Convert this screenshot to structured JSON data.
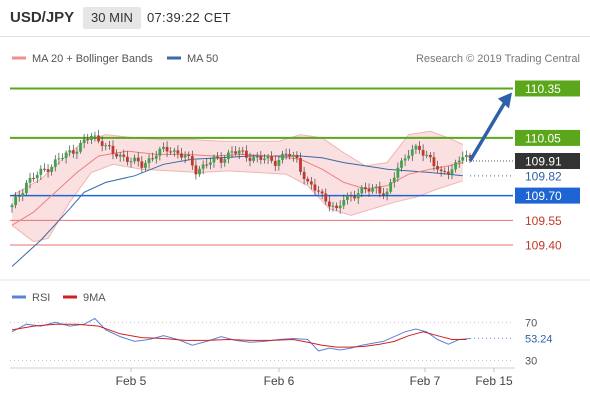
{
  "header": {
    "symbol": "USD/JPY",
    "timeframe": "30 MIN",
    "time": "07:39:22 CET"
  },
  "legend": {
    "ma20": "MA 20 + Bollinger Bands",
    "ma50": "MA 50",
    "credit": "Research © 2019 Trading Central"
  },
  "rsi_legend": {
    "rsi": "RSI",
    "ma9": "9MA"
  },
  "colors": {
    "resistance": "#5ba61b",
    "current": "#333333",
    "support": "#1e64d2",
    "weak": "#e57373",
    "ma20": "#ef7f7f",
    "ma50": "#3a6aa8",
    "bull": "#3fa34d",
    "bear": "#c0392b",
    "bands": "#f8d6d6",
    "arrow": "#2d62a8",
    "rsi": "#5a82d6",
    "rsi_ma": "#d22020"
  },
  "chart_data": [
    {
      "type": "candlestick",
      "title": "USD/JPY",
      "timeframe": "30 MIN",
      "x_labels": [
        "Feb 5",
        "Feb 6",
        "Feb 7",
        "Feb 15"
      ],
      "ylim": [
        109.2,
        110.45
      ],
      "current_price": 109.91,
      "ma50_value": 109.82,
      "levels": [
        {
          "label": "110.35",
          "value": 110.35,
          "kind": "resistance"
        },
        {
          "label": "110.05",
          "value": 110.05,
          "kind": "resistance"
        },
        {
          "label": "109.91",
          "value": 109.91,
          "kind": "current"
        },
        {
          "label": "109.82",
          "value": 109.82,
          "kind": "ma50"
        },
        {
          "label": "109.70",
          "value": 109.7,
          "kind": "support"
        },
        {
          "label": "109.55",
          "value": 109.55,
          "kind": "weak"
        },
        {
          "label": "109.40",
          "value": 109.4,
          "kind": "weak"
        }
      ],
      "target": 110.35,
      "close_path": [
        [
          0,
          109.63
        ],
        [
          4,
          109.78
        ],
        [
          8,
          109.84
        ],
        [
          13,
          109.92
        ],
        [
          18,
          109.99
        ],
        [
          22,
          110.06
        ],
        [
          25,
          110.03
        ],
        [
          28,
          109.95
        ],
        [
          32,
          109.93
        ],
        [
          36,
          109.88
        ],
        [
          40,
          109.96
        ],
        [
          44,
          109.98
        ],
        [
          48,
          109.94
        ],
        [
          51,
          109.85
        ],
        [
          54,
          109.9
        ],
        [
          58,
          109.92
        ],
        [
          61,
          109.97
        ],
        [
          64,
          109.95
        ],
        [
          67,
          109.93
        ],
        [
          70,
          109.92
        ],
        [
          73,
          109.91
        ],
        [
          76,
          109.95
        ],
        [
          79,
          109.92
        ],
        [
          82,
          109.77
        ],
        [
          85,
          109.72
        ],
        [
          88,
          109.66
        ],
        [
          90,
          109.6
        ],
        [
          92,
          109.68
        ],
        [
          95,
          109.71
        ],
        [
          98,
          109.73
        ],
        [
          101,
          109.75
        ],
        [
          104,
          109.7
        ],
        [
          107,
          109.88
        ],
        [
          110,
          109.96
        ],
        [
          113,
          109.98
        ],
        [
          116,
          109.93
        ],
        [
          119,
          109.82
        ],
        [
          122,
          109.87
        ],
        [
          125,
          109.94
        ],
        [
          127,
          109.91
        ]
      ],
      "ma50": [
        [
          0,
          109.27
        ],
        [
          8,
          109.43
        ],
        [
          16,
          109.62
        ],
        [
          20,
          109.72
        ],
        [
          26,
          109.78
        ],
        [
          34,
          109.82
        ],
        [
          42,
          109.89
        ],
        [
          50,
          109.92
        ],
        [
          58,
          109.93
        ],
        [
          66,
          109.94
        ],
        [
          74,
          109.94
        ],
        [
          80,
          109.94
        ],
        [
          86,
          109.93
        ],
        [
          92,
          109.9
        ],
        [
          98,
          109.88
        ],
        [
          104,
          109.86
        ],
        [
          110,
          109.85
        ],
        [
          116,
          109.84
        ],
        [
          121,
          109.83
        ],
        [
          125,
          109.82
        ]
      ],
      "ma20": [
        [
          0,
          109.52
        ],
        [
          6,
          109.6
        ],
        [
          12,
          109.72
        ],
        [
          18,
          109.84
        ],
        [
          24,
          109.94
        ],
        [
          32,
          109.97
        ],
        [
          40,
          109.95
        ],
        [
          48,
          109.95
        ],
        [
          56,
          109.94
        ],
        [
          64,
          109.95
        ],
        [
          72,
          109.94
        ],
        [
          80,
          109.92
        ],
        [
          86,
          109.86
        ],
        [
          92,
          109.78
        ],
        [
          98,
          109.74
        ],
        [
          104,
          109.76
        ],
        [
          110,
          109.83
        ],
        [
          116,
          109.86
        ],
        [
          121,
          109.88
        ],
        [
          125,
          109.9
        ]
      ],
      "bb_upper": [
        [
          0,
          109.7
        ],
        [
          8,
          109.8
        ],
        [
          14,
          109.92
        ],
        [
          20,
          110.03
        ],
        [
          26,
          110.07
        ],
        [
          34,
          110.05
        ],
        [
          42,
          110.04
        ],
        [
          50,
          110.04
        ],
        [
          58,
          110.03
        ],
        [
          66,
          110.03
        ],
        [
          74,
          110.03
        ],
        [
          80,
          110.07
        ],
        [
          86,
          110.05
        ],
        [
          92,
          109.96
        ],
        [
          98,
          109.88
        ],
        [
          104,
          109.9
        ],
        [
          110,
          110.07
        ],
        [
          116,
          110.09
        ],
        [
          121,
          110.05
        ],
        [
          125,
          110.01
        ]
      ],
      "bb_lower": [
        [
          0,
          109.52
        ],
        [
          6,
          109.42
        ],
        [
          10,
          109.44
        ],
        [
          16,
          109.66
        ],
        [
          22,
          109.84
        ],
        [
          28,
          109.89
        ],
        [
          36,
          109.86
        ],
        [
          44,
          109.85
        ],
        [
          52,
          109.84
        ],
        [
          60,
          109.85
        ],
        [
          68,
          109.84
        ],
        [
          76,
          109.83
        ],
        [
          82,
          109.76
        ],
        [
          88,
          109.62
        ],
        [
          94,
          109.58
        ],
        [
          100,
          109.62
        ],
        [
          106,
          109.66
        ],
        [
          112,
          109.69
        ],
        [
          118,
          109.74
        ],
        [
          125,
          109.79
        ]
      ]
    },
    {
      "type": "line",
      "title": "RSI",
      "ylim": [
        20,
        85
      ],
      "yticks": [
        30,
        70
      ],
      "current_value": 53.24,
      "rsi": [
        [
          0,
          60
        ],
        [
          4,
          68
        ],
        [
          8,
          66
        ],
        [
          12,
          70
        ],
        [
          16,
          66
        ],
        [
          20,
          68
        ],
        [
          23,
          74
        ],
        [
          26,
          62
        ],
        [
          30,
          55
        ],
        [
          34,
          50
        ],
        [
          38,
          52
        ],
        [
          42,
          56
        ],
        [
          46,
          52
        ],
        [
          50,
          46
        ],
        [
          54,
          50
        ],
        [
          58,
          55
        ],
        [
          62,
          51
        ],
        [
          66,
          49
        ],
        [
          70,
          50
        ],
        [
          74,
          52
        ],
        [
          78,
          53
        ],
        [
          82,
          52
        ],
        [
          85,
          40
        ],
        [
          88,
          43
        ],
        [
          91,
          41
        ],
        [
          94,
          43
        ],
        [
          97,
          46
        ],
        [
          100,
          48
        ],
        [
          103,
          50
        ],
        [
          106,
          55
        ],
        [
          109,
          60
        ],
        [
          112,
          63
        ],
        [
          115,
          60
        ],
        [
          118,
          52
        ],
        [
          121,
          47
        ],
        [
          124,
          52
        ],
        [
          127,
          53
        ]
      ],
      "rsi_ma": [
        [
          0,
          62
        ],
        [
          6,
          66
        ],
        [
          12,
          68
        ],
        [
          18,
          68
        ],
        [
          24,
          66
        ],
        [
          30,
          58
        ],
        [
          36,
          54
        ],
        [
          42,
          53
        ],
        [
          48,
          51
        ],
        [
          54,
          51
        ],
        [
          60,
          52
        ],
        [
          66,
          51
        ],
        [
          72,
          51
        ],
        [
          78,
          52
        ],
        [
          82,
          49
        ],
        [
          86,
          46
        ],
        [
          90,
          44
        ],
        [
          94,
          44
        ],
        [
          98,
          45
        ],
        [
          102,
          47
        ],
        [
          106,
          50
        ],
        [
          110,
          56
        ],
        [
          114,
          60
        ],
        [
          118,
          56
        ],
        [
          122,
          52
        ],
        [
          126,
          52
        ]
      ]
    }
  ]
}
